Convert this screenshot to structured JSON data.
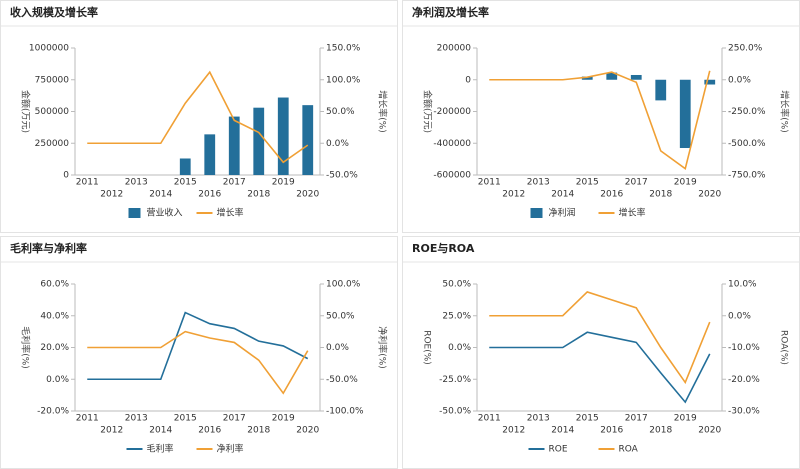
{
  "chart_data": [
    {
      "type": "combo",
      "title": "收入规模及增长率",
      "ylabel": "金额(万元)",
      "y2label": "增长率(%)",
      "categories": [
        "2011",
        "2012",
        "2013",
        "2014",
        "2015",
        "2016",
        "2017",
        "2018",
        "2019",
        "2020"
      ],
      "ylim": [
        0,
        1000000
      ],
      "yticks": [
        0,
        250000,
        500000,
        750000,
        1000000
      ],
      "y2lim": [
        -50,
        150
      ],
      "y2ticks": [
        {
          "value": -50,
          "label": "-50.0%"
        },
        {
          "value": 0,
          "label": "0.0%"
        },
        {
          "value": 50,
          "label": "50.0%"
        },
        {
          "value": 100,
          "label": "100.0%"
        },
        {
          "value": 150,
          "label": "150.0%"
        }
      ],
      "series": [
        {
          "name": "营业收入",
          "mark": "bar",
          "color": "#236f9a",
          "values": [
            null,
            null,
            null,
            null,
            130000,
            320000,
            460000,
            530000,
            610000,
            550000
          ]
        },
        {
          "name": "增长率",
          "mark": "line",
          "axis": "y2",
          "color": "#f0a035",
          "values": [
            0,
            0,
            0,
            0,
            63,
            112,
            36,
            17,
            -30,
            -3
          ]
        }
      ]
    },
    {
      "type": "combo",
      "title": "净利润及增长率",
      "ylabel": "金额(万元)",
      "y2label": "增长率(%)",
      "categories": [
        "2011",
        "2012",
        "2013",
        "2014",
        "2015",
        "2016",
        "2017",
        "2018",
        "2019",
        "2020"
      ],
      "ylim": [
        -600000,
        200000
      ],
      "yticks": [
        -600000,
        -400000,
        -200000,
        0,
        200000
      ],
      "y2lim": [
        -750,
        250
      ],
      "y2ticks": [
        {
          "value": -750,
          "label": "-750.0%"
        },
        {
          "value": -500,
          "label": "-500.0%"
        },
        {
          "value": -250,
          "label": "-250.0%"
        },
        {
          "value": 0,
          "label": "0.0%"
        },
        {
          "value": 250,
          "label": "250.0%"
        }
      ],
      "series": [
        {
          "name": "净利润",
          "mark": "bar",
          "color": "#236f9a",
          "values": [
            null,
            null,
            null,
            null,
            20000,
            45000,
            30000,
            -130000,
            -430000,
            -30000
          ]
        },
        {
          "name": "增长率",
          "mark": "line",
          "axis": "y2",
          "color": "#f0a035",
          "values": [
            0,
            0,
            0,
            0,
            20,
            60,
            -20,
            -560,
            -700,
            70
          ]
        }
      ]
    },
    {
      "type": "combo",
      "title": "毛利率与净利率",
      "ylabel": "毛利率(%)",
      "y2label": "净利率(%)",
      "categories": [
        "2011",
        "2012",
        "2013",
        "2014",
        "2015",
        "2016",
        "2017",
        "2018",
        "2019",
        "2020"
      ],
      "ylim": [
        -20,
        60
      ],
      "yticks": [
        {
          "value": -20,
          "label": "-20.0%"
        },
        {
          "value": 0,
          "label": "0.0%"
        },
        {
          "value": 20,
          "label": "20.0%"
        },
        {
          "value": 40,
          "label": "40.0%"
        },
        {
          "value": 60,
          "label": "60.0%"
        }
      ],
      "y2lim": [
        -100,
        100
      ],
      "y2ticks": [
        {
          "value": -100,
          "label": "-100.0%"
        },
        {
          "value": -50,
          "label": "-50.0%"
        },
        {
          "value": 0,
          "label": "0.0%"
        },
        {
          "value": 50,
          "label": "50.0%"
        },
        {
          "value": 100,
          "label": "100.0%"
        }
      ],
      "series": [
        {
          "name": "毛利率",
          "mark": "line",
          "color": "#236f9a",
          "values": [
            0,
            0,
            0,
            0,
            42,
            35,
            32,
            24,
            21,
            13
          ]
        },
        {
          "name": "净利率",
          "mark": "line",
          "axis": "y2",
          "color": "#f0a035",
          "values": [
            0,
            0,
            0,
            0,
            25,
            15,
            8,
            -20,
            -72,
            -5
          ]
        }
      ]
    },
    {
      "type": "combo",
      "title": "ROE与ROA",
      "ylabel": "ROE(%)",
      "y2label": "ROA(%)",
      "categories": [
        "2011",
        "2012",
        "2013",
        "2014",
        "2015",
        "2016",
        "2017",
        "2018",
        "2019",
        "2020"
      ],
      "ylim": [
        -50,
        50
      ],
      "yticks": [
        {
          "value": -50,
          "label": "-50.0%"
        },
        {
          "value": -25,
          "label": "-25.0%"
        },
        {
          "value": 0,
          "label": "0.0%"
        },
        {
          "value": 25,
          "label": "25.0%"
        },
        {
          "value": 50,
          "label": "50.0%"
        }
      ],
      "y2lim": [
        -30,
        10
      ],
      "y2ticks": [
        {
          "value": -30,
          "label": "-30.0%"
        },
        {
          "value": -20,
          "label": "-20.0%"
        },
        {
          "value": -10,
          "label": "-10.0%"
        },
        {
          "value": 0,
          "label": "0.0%"
        },
        {
          "value": 10,
          "label": "10.0%"
        }
      ],
      "series": [
        {
          "name": "ROE",
          "mark": "line",
          "color": "#236f9a",
          "values": [
            0,
            0,
            0,
            0,
            12,
            8,
            4,
            -20,
            -43,
            -5
          ]
        },
        {
          "name": "ROA",
          "mark": "line",
          "axis": "y2",
          "color": "#f0a035",
          "values": [
            0,
            0,
            0,
            0,
            7.5,
            5,
            2.5,
            -10,
            -21,
            -2
          ]
        }
      ]
    }
  ]
}
